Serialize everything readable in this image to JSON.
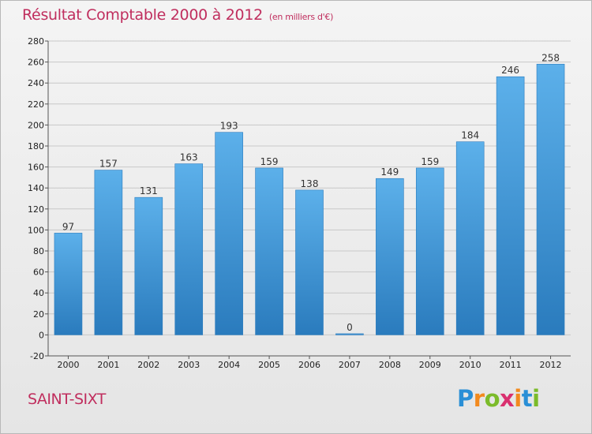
{
  "title": "Résultat Comptable 2000 à 2012",
  "subtitle": "(en milliers d'€)",
  "commune": "SAINT-SIXT",
  "logo": {
    "letters": [
      "P",
      "r",
      "o",
      "x",
      "i",
      "t",
      "i"
    ],
    "colors": [
      "#2a8fd6",
      "#f28a1e",
      "#7bbb2a",
      "#d9306f",
      "#f28a1e",
      "#2a8fd6",
      "#7bbb2a"
    ]
  },
  "colors": {
    "bar": "#3a93d4",
    "bar_light": "#5cb0ea",
    "bar_dark": "#2a7bbd",
    "title": "#c02e5e"
  },
  "chart_data": {
    "type": "bar",
    "title": "Résultat Comptable 2000 à 2012",
    "xlabel": "",
    "ylabel": "",
    "categories": [
      "2000",
      "2001",
      "2002",
      "2003",
      "2004",
      "2005",
      "2006",
      "2007",
      "2008",
      "2009",
      "2010",
      "2011",
      "2012"
    ],
    "values": [
      97,
      157,
      131,
      163,
      193,
      159,
      138,
      0,
      149,
      159,
      184,
      246,
      258
    ],
    "ylim": [
      -20,
      280
    ],
    "yticks": [
      -20,
      0,
      20,
      40,
      60,
      80,
      100,
      120,
      140,
      160,
      180,
      200,
      220,
      240,
      260,
      280
    ],
    "grid": true
  }
}
